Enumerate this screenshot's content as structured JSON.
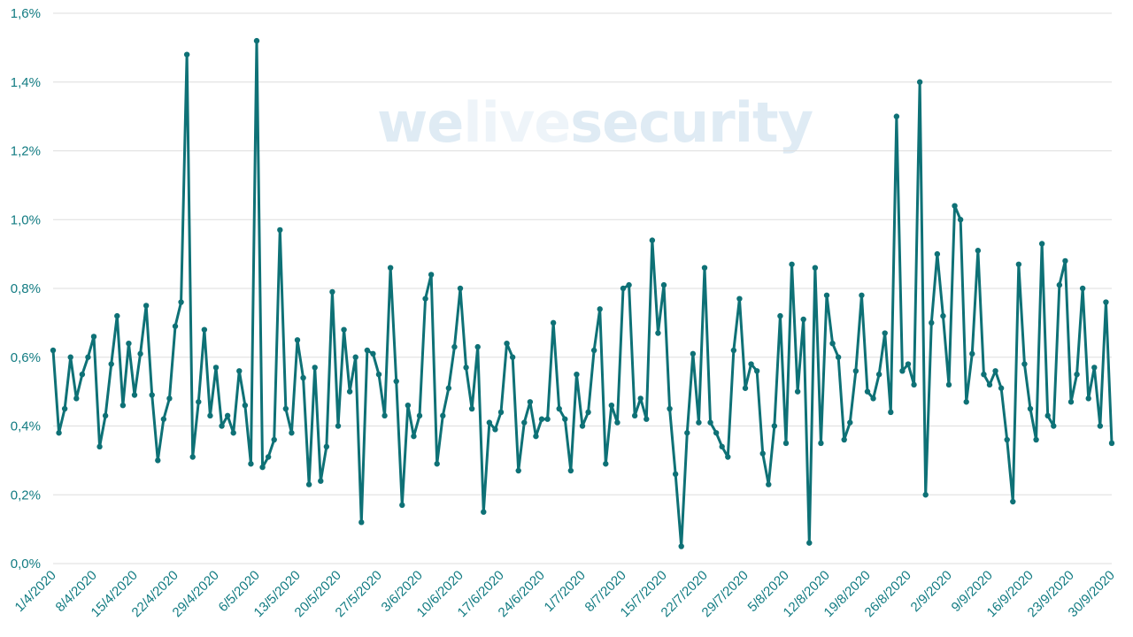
{
  "watermark": {
    "part1": "we",
    "part2": "live",
    "part3": "security"
  },
  "colors": {
    "line": "#0e7176",
    "tick": "#127b82",
    "grid": "#dedede",
    "watermark": "#dfebf4",
    "watermark_light": "#eef4f9"
  },
  "chart_data": {
    "type": "line",
    "title": "",
    "xlabel": "",
    "ylabel": "",
    "ylim": [
      0,
      1.6
    ],
    "yticks": [
      "0,0%",
      "0,2%",
      "0,4%",
      "0,6%",
      "0,8%",
      "1,0%",
      "1,2%",
      "1,4%",
      "1,6%"
    ],
    "ytick_values": [
      0,
      0.2,
      0.4,
      0.6,
      0.8,
      1.0,
      1.2,
      1.4,
      1.6
    ],
    "xtick_labels": [
      "1/4/2020",
      "8/4/2020",
      "15/4/2020",
      "22/4/2020",
      "29/4/2020",
      "6/5/2020",
      "13/5/2020",
      "20/5/2020",
      "27/5/2020",
      "3/6/2020",
      "10/6/2020",
      "17/6/2020",
      "24/6/2020",
      "1/7/2020",
      "8/7/2020",
      "15/7/2020",
      "22/7/2020",
      "29/7/2020",
      "5/8/2020",
      "12/8/2020",
      "19/8/2020",
      "26/8/2020",
      "2/9/2020",
      "9/9/2020",
      "16/9/2020",
      "23/9/2020",
      "30/9/2020"
    ],
    "grid": true,
    "legend": "none",
    "series": [
      {
        "x_start": "1/4/2020",
        "x_end": "30/9/2020",
        "unit": "%",
        "values": [
          0.62,
          0.38,
          0.45,
          0.6,
          0.48,
          0.55,
          0.6,
          0.66,
          0.34,
          0.43,
          0.58,
          0.72,
          0.46,
          0.64,
          0.49,
          0.61,
          0.75,
          0.49,
          0.3,
          0.42,
          0.48,
          0.69,
          0.76,
          1.48,
          0.31,
          0.47,
          0.68,
          0.43,
          0.57,
          0.4,
          0.43,
          0.38,
          0.56,
          0.46,
          0.29,
          1.52,
          0.28,
          0.31,
          0.36,
          0.97,
          0.45,
          0.38,
          0.65,
          0.54,
          0.23,
          0.57,
          0.24,
          0.34,
          0.79,
          0.4,
          0.68,
          0.5,
          0.6,
          0.12,
          0.62,
          0.61,
          0.55,
          0.43,
          0.86,
          0.53,
          0.17,
          0.46,
          0.37,
          0.43,
          0.77,
          0.84,
          0.29,
          0.43,
          0.51,
          0.63,
          0.8,
          0.57,
          0.45,
          0.63,
          0.15,
          0.41,
          0.39,
          0.44,
          0.64,
          0.6,
          0.27,
          0.41,
          0.47,
          0.37,
          0.42,
          0.42,
          0.7,
          0.45,
          0.42,
          0.27,
          0.55,
          0.4,
          0.44,
          0.62,
          0.74,
          0.29,
          0.46,
          0.41,
          0.8,
          0.81,
          0.43,
          0.48,
          0.42,
          0.94,
          0.67,
          0.81,
          0.45,
          0.26,
          0.05,
          0.38,
          0.61,
          0.41,
          0.86,
          0.41,
          0.38,
          0.34,
          0.31,
          0.62,
          0.77,
          0.51,
          0.58,
          0.56,
          0.32,
          0.23,
          0.4,
          0.72,
          0.35,
          0.87,
          0.5,
          0.71,
          0.06,
          0.86,
          0.35,
          0.78,
          0.64,
          0.6,
          0.36,
          0.41,
          0.56,
          0.78,
          0.5,
          0.48,
          0.55,
          0.67,
          0.44,
          1.3,
          0.56,
          0.58,
          0.52,
          1.4,
          0.2,
          0.7,
          0.9,
          0.72,
          0.52,
          1.04,
          1.0,
          0.47,
          0.61,
          0.91,
          0.55,
          0.52,
          0.56,
          0.51,
          0.36,
          0.18,
          0.87,
          0.58,
          0.45,
          0.36,
          0.93,
          0.43,
          0.4,
          0.81,
          0.88,
          0.47,
          0.55,
          0.8,
          0.48,
          0.57,
          0.4,
          0.76,
          0.35
        ]
      }
    ]
  }
}
